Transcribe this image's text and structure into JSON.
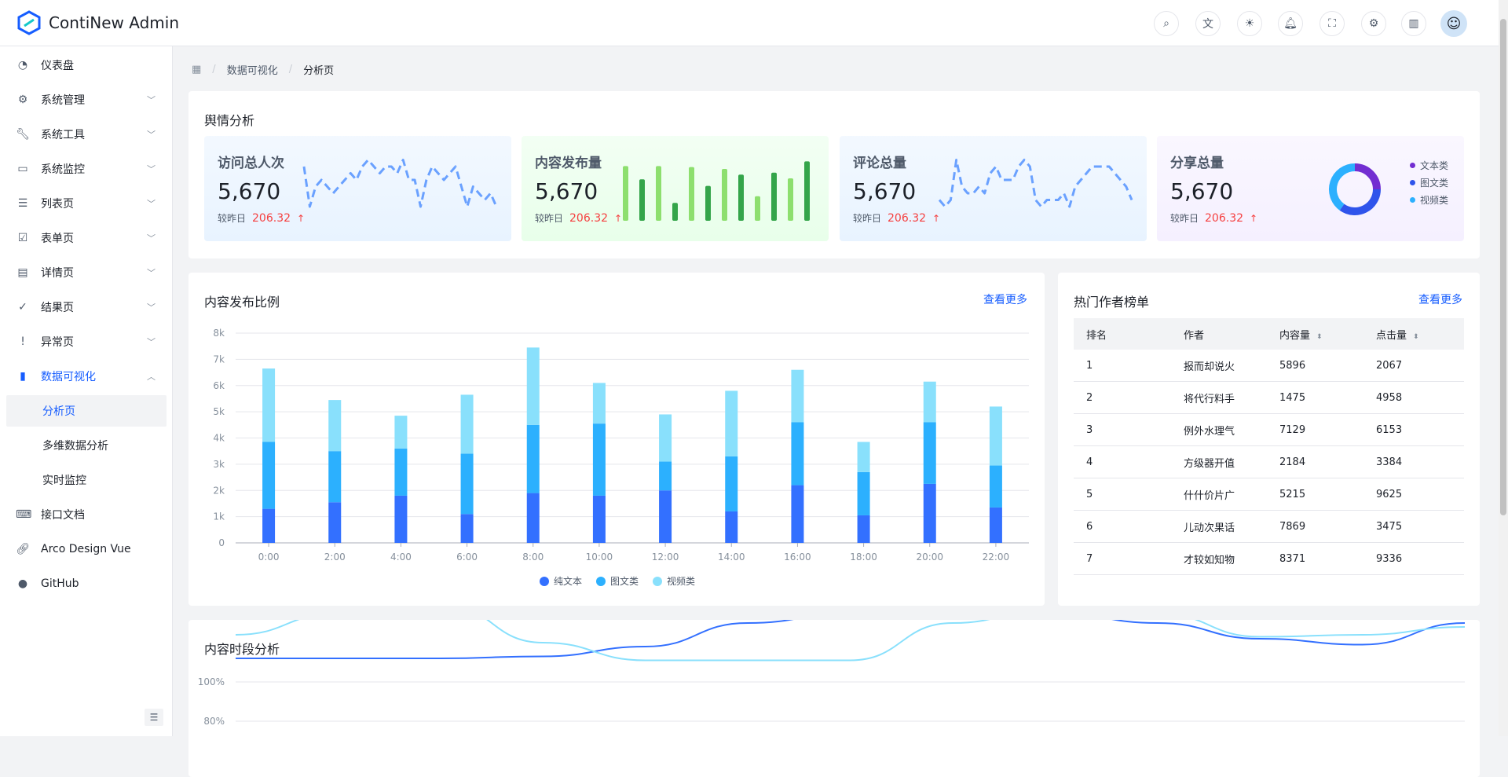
{
  "header": {
    "app_title": "ContiNew Admin",
    "icons": [
      "search-icon",
      "translate-icon",
      "theme-sun-icon",
      "bell-icon",
      "fullscreen-icon",
      "settings-icon",
      "book-icon"
    ]
  },
  "sidebar": {
    "items": [
      {
        "label": "仪表盘",
        "icon": "dashboard-icon"
      },
      {
        "label": "系统管理",
        "icon": "gear-icon",
        "chevron": "down"
      },
      {
        "label": "系统工具",
        "icon": "wrench-icon",
        "chevron": "down"
      },
      {
        "label": "系统监控",
        "icon": "monitor-icon",
        "chevron": "down"
      },
      {
        "label": "列表页",
        "icon": "list-icon",
        "chevron": "down"
      },
      {
        "label": "表单页",
        "icon": "checklist-icon",
        "chevron": "down"
      },
      {
        "label": "详情页",
        "icon": "file-icon",
        "chevron": "down"
      },
      {
        "label": "结果页",
        "icon": "check-circle-icon",
        "chevron": "down"
      },
      {
        "label": "异常页",
        "icon": "exclamation-circle-icon",
        "chevron": "down"
      },
      {
        "label": "数据可视化",
        "icon": "bar-chart-icon",
        "chevron": "up",
        "active": true
      },
      {
        "label": "分析页",
        "sub": true,
        "selected": true
      },
      {
        "label": "多维数据分析",
        "sub": true
      },
      {
        "label": "实时监控",
        "sub": true
      },
      {
        "label": "接口文档",
        "icon": "code-file-icon"
      },
      {
        "label": "Arco Design Vue",
        "icon": "link-icon"
      },
      {
        "label": "GitHub",
        "icon": "github-icon"
      }
    ]
  },
  "breadcrumb": {
    "items": [
      "数据可视化",
      "分析页"
    ]
  },
  "sentiment": {
    "title": "舆情分析",
    "cards": [
      {
        "title": "访问总人次",
        "value": "5,670",
        "compare_label": "较昨日",
        "change": "206.32",
        "bg": "#e8f3ff",
        "spark": [
          8,
          2,
          5,
          6,
          5,
          4,
          5,
          6,
          7,
          6,
          8,
          9,
          8,
          7,
          8,
          8,
          7,
          9,
          6,
          6,
          2,
          6,
          8,
          7,
          6,
          7,
          8,
          5,
          2,
          5,
          4,
          3,
          4,
          2
        ]
      },
      {
        "title": "内容发布量",
        "value": "5,670",
        "compare_label": "较昨日",
        "change": "206.32",
        "bg": "#e8ffea",
        "bars": [
          58,
          44,
          58,
          19,
          57,
          37,
          55,
          49,
          26,
          51,
          45,
          63
        ]
      },
      {
        "title": "评论总量",
        "value": "5,670",
        "compare_label": "较昨日",
        "change": "206.32",
        "bg": "#e8f3ff",
        "spark": [
          3,
          2,
          3,
          9,
          5,
          4,
          4,
          5,
          4,
          7,
          8,
          6,
          6,
          6,
          8,
          9,
          8,
          3,
          2,
          3,
          3,
          3,
          4,
          2,
          5,
          6,
          7,
          8,
          8,
          8,
          8,
          7,
          6,
          5,
          3
        ]
      },
      {
        "title": "分享总量",
        "value": "5,670",
        "compare_label": "较昨日",
        "change": "206.32",
        "bg": "#f5f0ff",
        "donut": [
          {
            "name": "文本类",
            "value": 25,
            "color": "#722ed1"
          },
          {
            "name": "图文类",
            "value": 35,
            "color": "#2f54eb"
          },
          {
            "name": "视频类",
            "value": 40,
            "color": "#2cb0fe"
          }
        ]
      }
    ]
  },
  "content_ratio": {
    "title": "内容发布比例",
    "more": "查看更多"
  },
  "authors": {
    "title": "热门作者榜单",
    "more": "查看更多",
    "columns": [
      "排名",
      "作者",
      "内容量",
      "点击量"
    ],
    "rows": [
      [
        "1",
        "报而却说火",
        "5896",
        "2067"
      ],
      [
        "2",
        "将代行料手",
        "1475",
        "4958"
      ],
      [
        "3",
        "例外水理气",
        "7129",
        "6153"
      ],
      [
        "4",
        "方级器开值",
        "2184",
        "3384"
      ],
      [
        "5",
        "什什价片广",
        "5215",
        "9625"
      ],
      [
        "6",
        "儿动次果话",
        "7869",
        "3475"
      ],
      [
        "7",
        "才较如知物",
        "8371",
        "9336"
      ]
    ]
  },
  "period": {
    "title": "内容时段分析"
  },
  "chart_data": [
    {
      "type": "bar",
      "stacked": true,
      "categories": [
        "0:00",
        "2:00",
        "4:00",
        "6:00",
        "8:00",
        "10:00",
        "12:00",
        "14:00",
        "16:00",
        "18:00",
        "20:00",
        "22:00"
      ],
      "yticks": [
        "0",
        "1k",
        "2k",
        "3k",
        "4k",
        "5k",
        "6k",
        "7k",
        "8k"
      ],
      "ylim": [
        0,
        8000
      ],
      "grid": true,
      "legend": "bottom",
      "series": [
        {
          "name": "纯文本",
          "color": "#3370ff",
          "values": [
            1300,
            1550,
            1800,
            1100,
            1900,
            1800,
            2000,
            1200,
            2200,
            1050,
            2250,
            1350
          ]
        },
        {
          "name": "图文类",
          "color": "#2cb0fe",
          "values": [
            2550,
            1950,
            1800,
            2300,
            2600,
            2750,
            1100,
            2100,
            2400,
            1650,
            2350,
            1600
          ]
        },
        {
          "name": "视频类",
          "color": "#89e0fc",
          "values": [
            2800,
            1950,
            1250,
            2250,
            2950,
            1550,
            1800,
            2500,
            2000,
            1150,
            1550,
            2250
          ]
        }
      ]
    },
    {
      "type": "line",
      "yticks": [
        "100%",
        "80%"
      ],
      "grid": true,
      "series": [
        {
          "color": "#3370ff",
          "values": [
            88,
            88,
            88,
            87,
            82,
            70,
            65,
            65,
            65,
            70,
            78,
            81,
            70
          ]
        },
        {
          "color": "#89e0fc",
          "values": [
            76,
            65,
            60,
            80,
            89,
            89,
            89,
            70,
            62,
            65,
            77,
            76,
            72
          ]
        }
      ]
    }
  ]
}
